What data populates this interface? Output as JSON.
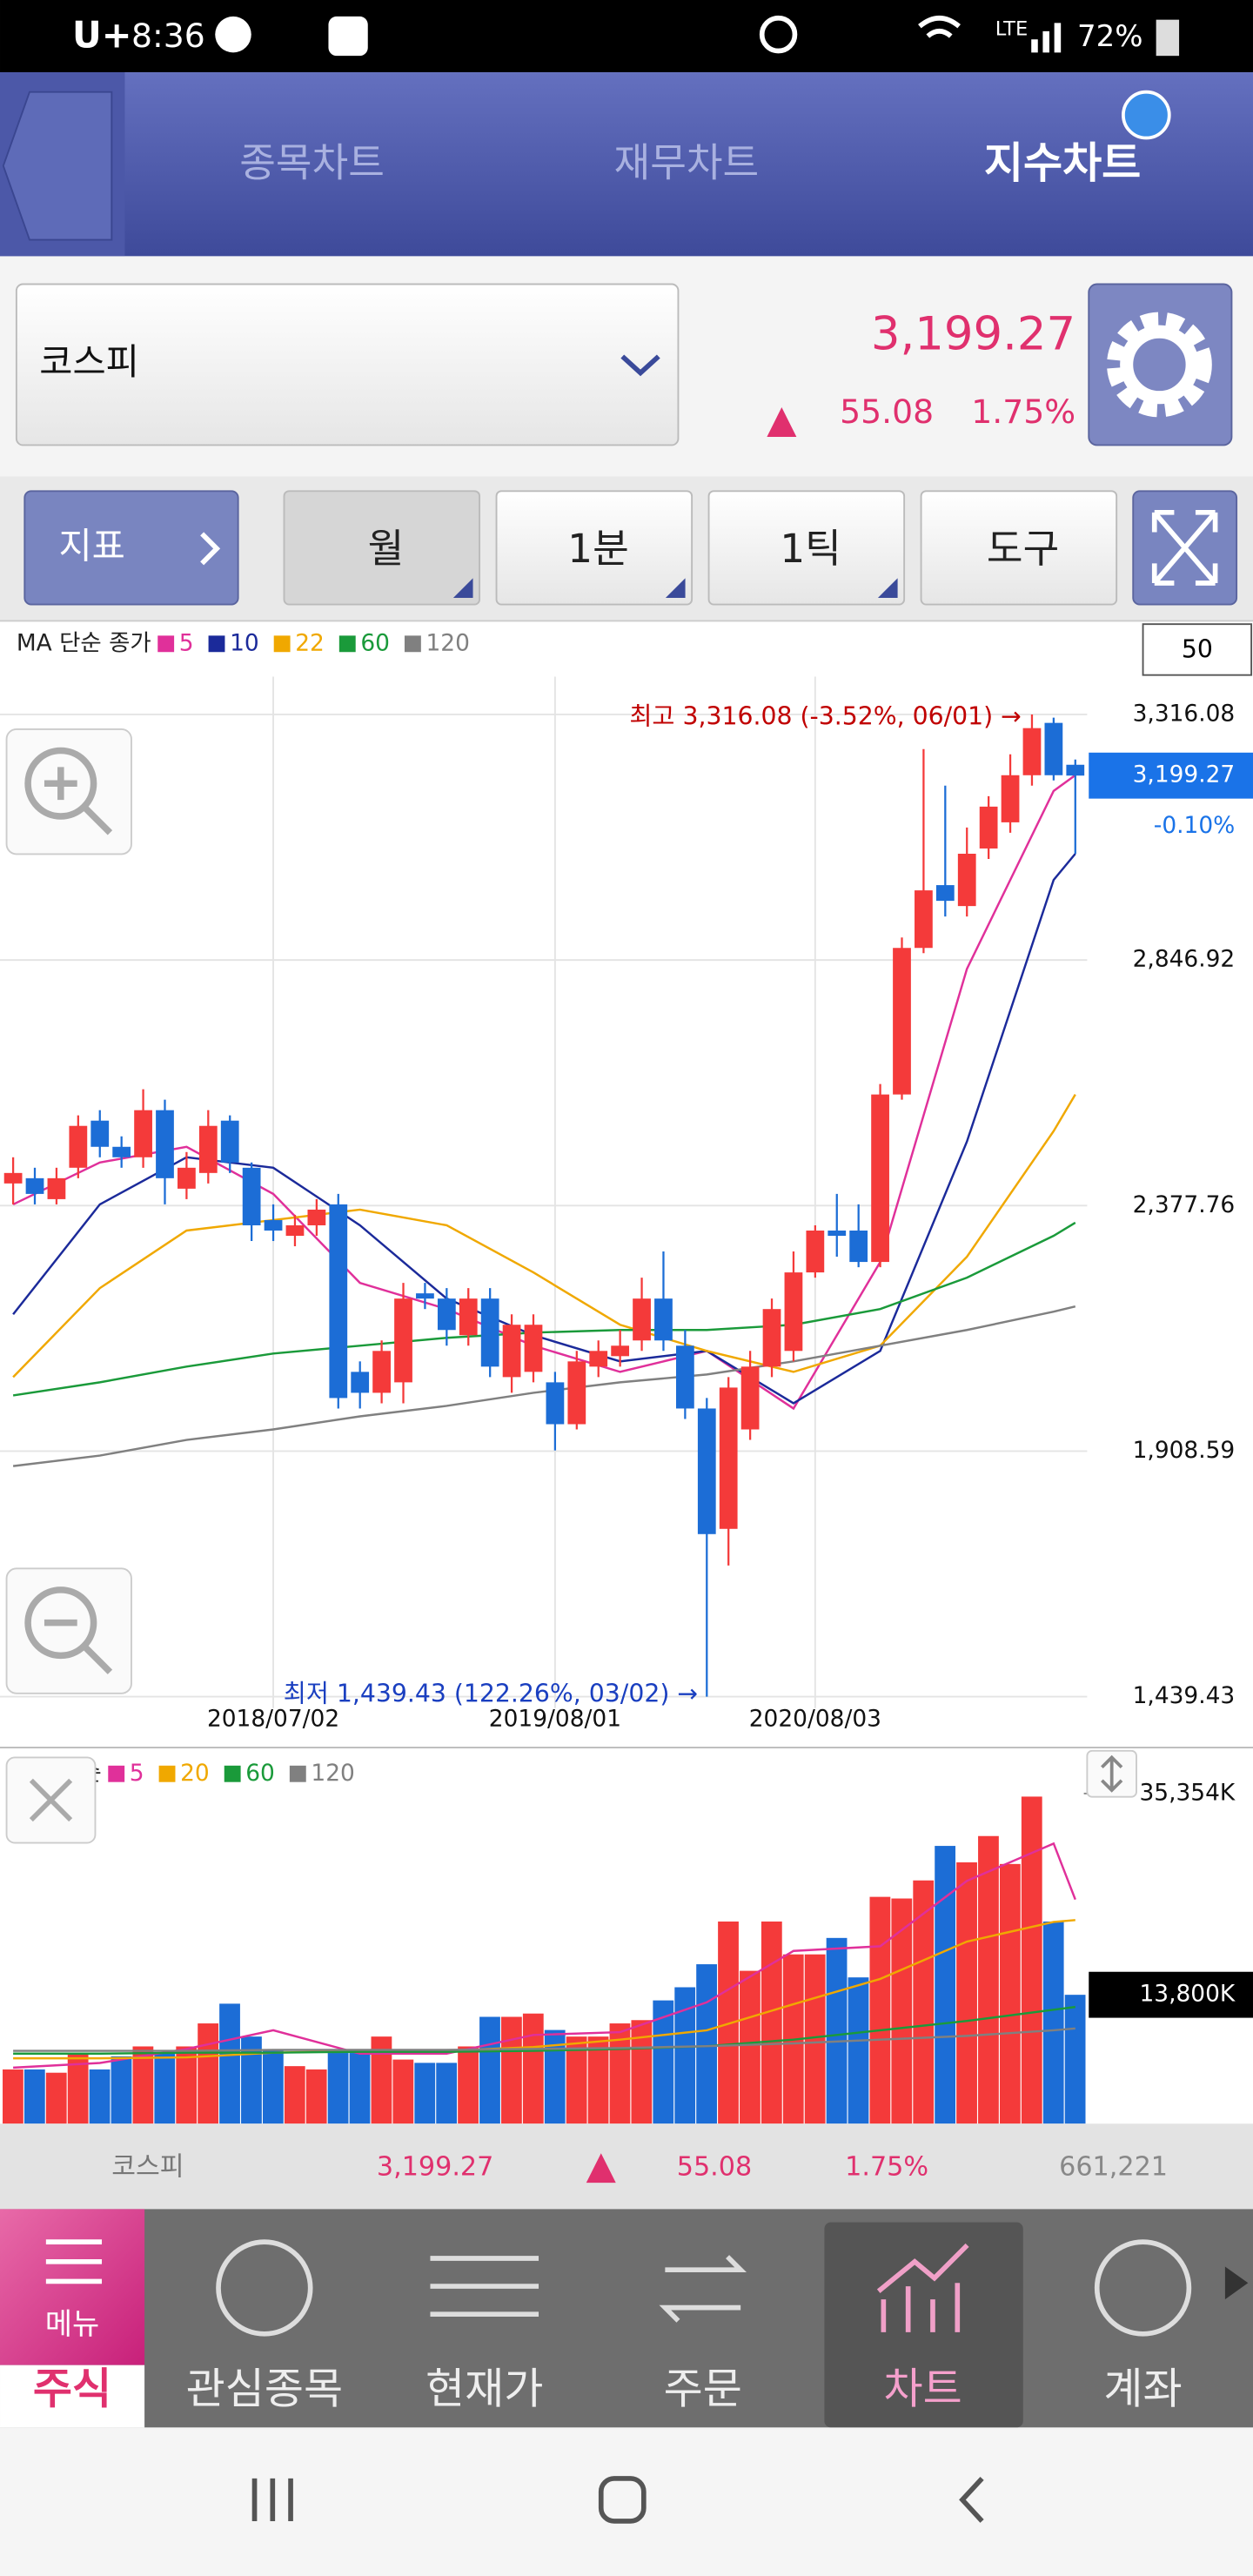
{
  "status_bar": {
    "carrier": "U+",
    "time": "8:36",
    "network": "LTE",
    "battery": "72%"
  },
  "tabs": {
    "items": [
      "종목차트",
      "재무차트",
      "지수차트"
    ],
    "active": 2
  },
  "selector": {
    "name": "코스피"
  },
  "quote": {
    "price": "3,199.27",
    "change": "55.08",
    "change_pct": "1.75%"
  },
  "toolbar": {
    "indicator": "지표",
    "buttons": [
      "월",
      "1분",
      "1틱",
      "도구"
    ],
    "active": 0
  },
  "price_chart": {
    "type": "candlestick",
    "legend_prefix": "MA 단순 종가",
    "period": "50",
    "up_color": "#f43a3a",
    "down_color": "#1c6dd6",
    "grid": true,
    "ylim": [
      1345.3,
      3488.7
    ],
    "yticks": [
      {
        "value": 3316.08,
        "label": "3,316.08"
      },
      {
        "value": 2846.92,
        "label": "2,846.92"
      },
      {
        "value": 2377.76,
        "label": "2,377.76"
      },
      {
        "value": 1908.59,
        "label": "1,908.59"
      },
      {
        "value": 1439.43,
        "label": "1,439.43"
      }
    ],
    "x_labels": [
      {
        "index": 12,
        "label": "2018/07/02"
      },
      {
        "index": 25,
        "label": "2019/08/01"
      },
      {
        "index": 37,
        "label": "2020/08/03"
      }
    ],
    "open": [
      2420,
      2430,
      2390,
      2450,
      2540,
      2490,
      2470,
      2560,
      2410,
      2440,
      2540,
      2450,
      2350,
      2320,
      2340,
      2380,
      2060,
      2020,
      2040,
      2210,
      2200,
      2130,
      2200,
      2050,
      2060,
      2040,
      1960,
      2070,
      2090,
      2120,
      2200,
      2110,
      1990,
      1760,
      1950,
      2070,
      2100,
      2250,
      2330,
      2330,
      2270,
      2590,
      2870,
      2990,
      2950,
      3060,
      3110,
      3200,
      3300,
      3220
    ],
    "high": [
      2470,
      2450,
      2450,
      2550,
      2560,
      2510,
      2600,
      2580,
      2480,
      2560,
      2550,
      2460,
      2380,
      2360,
      2390,
      2400,
      2080,
      2120,
      2230,
      2230,
      2220,
      2220,
      2220,
      2170,
      2170,
      2060,
      2100,
      2120,
      2140,
      2240,
      2290,
      2140,
      2010,
      2050,
      2100,
      2200,
      2290,
      2340,
      2400,
      2380,
      2610,
      2890,
      3250,
      3180,
      3100,
      3160,
      3240,
      3316.08,
      3310,
      3230
    ],
    "low": [
      2380,
      2380,
      2380,
      2430,
      2470,
      2450,
      2450,
      2380,
      2390,
      2420,
      2440,
      2310,
      2310,
      2300,
      2320,
      1990,
      1990,
      2000,
      2000,
      2180,
      2110,
      2110,
      2050,
      2020,
      2040,
      1910,
      1950,
      2050,
      2070,
      2100,
      2100,
      1970,
      1439.43,
      1690,
      1930,
      2050,
      2080,
      2240,
      2280,
      2260,
      2260,
      2580,
      2860,
      2930,
      2930,
      3040,
      3090,
      3180,
      3190,
      3050
    ],
    "close": [
      2440,
      2400,
      2430,
      2530,
      2490,
      2470,
      2560,
      2430,
      2450,
      2530,
      2460,
      2340,
      2330,
      2340,
      2370,
      2010,
      2020,
      2100,
      2200,
      2200,
      2140,
      2200,
      2070,
      2150,
      2150,
      1960,
      2080,
      2100,
      2110,
      2200,
      2120,
      1990,
      1750,
      2030,
      2070,
      2180,
      2250,
      2330,
      2320,
      2270,
      2590,
      2870,
      2980,
      2960,
      3050,
      3140,
      3200,
      3290,
      3200,
      3199.27
    ],
    "ma": [
      {
        "name": "5",
        "color": "#e0309a",
        "index": [
          0,
          4,
          8,
          12,
          16,
          20,
          24,
          28,
          32,
          36,
          40,
          44,
          48,
          49
        ],
        "values": [
          2380,
          2460,
          2490,
          2400,
          2230,
          2180,
          2110,
          2060,
          2100,
          1990,
          2270,
          2830,
          3170,
          3200
        ]
      },
      {
        "name": "10",
        "color": "#1b2a9a",
        "index": [
          0,
          4,
          8,
          12,
          16,
          20,
          24,
          28,
          32,
          36,
          40,
          44,
          48,
          49
        ],
        "values": [
          2170,
          2380,
          2470,
          2450,
          2340,
          2200,
          2130,
          2080,
          2100,
          2000,
          2100,
          2500,
          3000,
          3050
        ]
      },
      {
        "name": "22",
        "color": "#f0a800",
        "index": [
          0,
          4,
          8,
          12,
          16,
          20,
          24,
          28,
          32,
          36,
          40,
          44,
          48,
          49
        ],
        "values": [
          2050,
          2220,
          2330,
          2350,
          2370,
          2340,
          2250,
          2150,
          2100,
          2060,
          2110,
          2280,
          2520,
          2590
        ]
      },
      {
        "name": "60",
        "color": "#1a9a3a",
        "index": [
          0,
          4,
          8,
          12,
          16,
          20,
          24,
          28,
          32,
          36,
          40,
          44,
          48,
          49
        ],
        "values": [
          2015,
          2040,
          2070,
          2095,
          2110,
          2125,
          2135,
          2140,
          2140,
          2150,
          2180,
          2240,
          2320,
          2345
        ]
      },
      {
        "name": "120",
        "color": "#808080",
        "index": [
          0,
          4,
          8,
          12,
          16,
          20,
          24,
          28,
          32,
          36,
          40,
          44,
          48,
          49
        ],
        "values": [
          1880,
          1900,
          1930,
          1950,
          1975,
          1995,
          2020,
          2040,
          2055,
          2080,
          2110,
          2140,
          2175,
          2185
        ]
      }
    ],
    "current": {
      "value": 3199.27,
      "label": "3,199.27"
    },
    "current_change": "-0.10%",
    "high_note": "최고 3,316.08 (-3.52%, 06/01) →",
    "low_note": "최저 1,439.43 (122.26%, 03/02) →"
  },
  "volume_chart": {
    "type": "bar",
    "legend_prefix": "MA 단순",
    "ylim": [
      0,
      40100
    ],
    "top_tick": {
      "value": 35354,
      "label": "35,354K"
    },
    "current": {
      "value": 13800,
      "label": "13,800K"
    },
    "values": [
      5808,
      5808,
      5456,
      7568,
      5808,
      7216,
      8272,
      7568,
      8272,
      10736,
      12848,
      9328,
      7920,
      6160,
      5808,
      7568,
      7568,
      9328,
      6864,
      6512,
      6512,
      8272,
      11440,
      11440,
      11792,
      10032,
      9328,
      9328,
      10736,
      11088,
      13200,
      14608,
      17072,
      21648,
      16368,
      21648,
      18128,
      18128,
      19888,
      15664,
      24288,
      24112,
      26048,
      29744,
      27984,
      30800,
      27808,
      35024,
      21648,
      13800
    ],
    "ma": [
      {
        "name": "5",
        "color": "#e0309a",
        "index": [
          0,
          4,
          8,
          12,
          16,
          20,
          24,
          28,
          32,
          36,
          40,
          44,
          48,
          49
        ],
        "values": [
          6000,
          6500,
          8000,
          10000,
          7500,
          7500,
          9500,
          9800,
          13000,
          18500,
          19000,
          26000,
          30000,
          24000
        ]
      },
      {
        "name": "20",
        "color": "#f0a800",
        "index": [
          0,
          4,
          8,
          12,
          16,
          20,
          24,
          28,
          32,
          36,
          40,
          44,
          48,
          49
        ],
        "values": [
          7000,
          7000,
          7100,
          7600,
          7800,
          7800,
          8200,
          9000,
          10000,
          12800,
          15500,
          19500,
          21600,
          21800
        ]
      },
      {
        "name": "60",
        "color": "#1a9a3a",
        "index": [
          0,
          4,
          8,
          12,
          16,
          20,
          24,
          28,
          32,
          36,
          40,
          44,
          48,
          49
        ],
        "values": [
          7500,
          7500,
          7600,
          7600,
          7700,
          7700,
          7800,
          8000,
          8300,
          9000,
          10000,
          11000,
          12200,
          12500
        ]
      },
      {
        "name": "120",
        "color": "#808080",
        "index": [
          0,
          4,
          8,
          12,
          16,
          20,
          24,
          28,
          32,
          36,
          40,
          44,
          48,
          49
        ],
        "values": [
          7800,
          7800,
          7800,
          7900,
          7900,
          7900,
          8000,
          8100,
          8300,
          8600,
          9000,
          9400,
          10000,
          10200
        ]
      }
    ]
  },
  "info_bar": {
    "name": "코스피",
    "price": "3,199.27",
    "change": "55.08",
    "change_pct": "1.75%",
    "volume": "661,221"
  },
  "bottom_nav": {
    "menu": "메뉴",
    "items": [
      "주식",
      "관심종목",
      "현재가",
      "주문",
      "차트",
      "계좌"
    ],
    "active": 4
  }
}
